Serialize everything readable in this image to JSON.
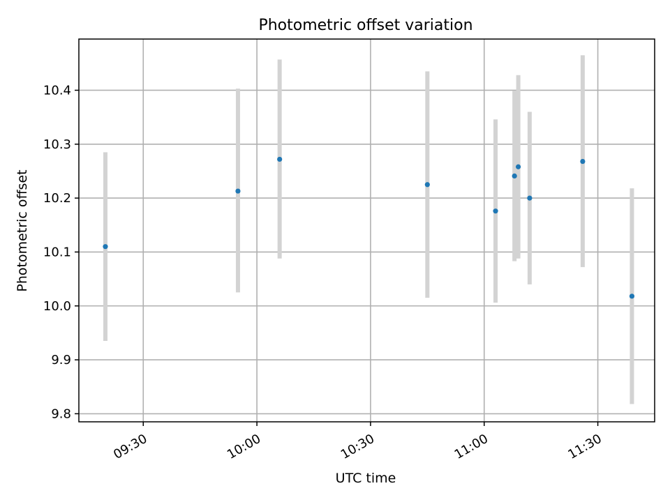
{
  "chart_data": {
    "type": "scatter",
    "title": "Photometric offset variation",
    "xlabel": "UTC time",
    "ylabel": "Photometric offset",
    "x_axis_type": "time",
    "xlim": [
      "09:13",
      "11:45"
    ],
    "ylim": [
      9.785,
      10.495
    ],
    "x_ticks": [
      "09:30",
      "10:00",
      "10:30",
      "11:00",
      "11:30"
    ],
    "y_ticks": [
      "9.8",
      "9.9",
      "10.0",
      "10.1",
      "10.2",
      "10.3",
      "10.4"
    ],
    "grid": true,
    "marker_color": "#1f77b4",
    "errorbar_color": "#d3d3d3",
    "series": [
      {
        "points": [
          {
            "x": "09:20",
            "y": 10.11,
            "err_low": 9.935,
            "err_high": 10.285
          },
          {
            "x": "09:55",
            "y": 10.213,
            "err_low": 10.025,
            "err_high": 10.403
          },
          {
            "x": "10:06",
            "y": 10.272,
            "err_low": 10.088,
            "err_high": 10.457
          },
          {
            "x": "10:45",
            "y": 10.225,
            "err_low": 10.015,
            "err_high": 10.435
          },
          {
            "x": "11:03",
            "y": 10.176,
            "err_low": 10.006,
            "err_high": 10.346
          },
          {
            "x": "11:08",
            "y": 10.241,
            "err_low": 10.083,
            "err_high": 10.399
          },
          {
            "x": "11:09",
            "y": 10.258,
            "err_low": 10.088,
            "err_high": 10.428
          },
          {
            "x": "11:12",
            "y": 10.2,
            "err_low": 10.04,
            "err_high": 10.36
          },
          {
            "x": "11:26",
            "y": 10.268,
            "err_low": 10.072,
            "err_high": 10.465
          },
          {
            "x": "11:39",
            "y": 10.018,
            "err_low": 9.818,
            "err_high": 10.218
          }
        ]
      }
    ]
  }
}
